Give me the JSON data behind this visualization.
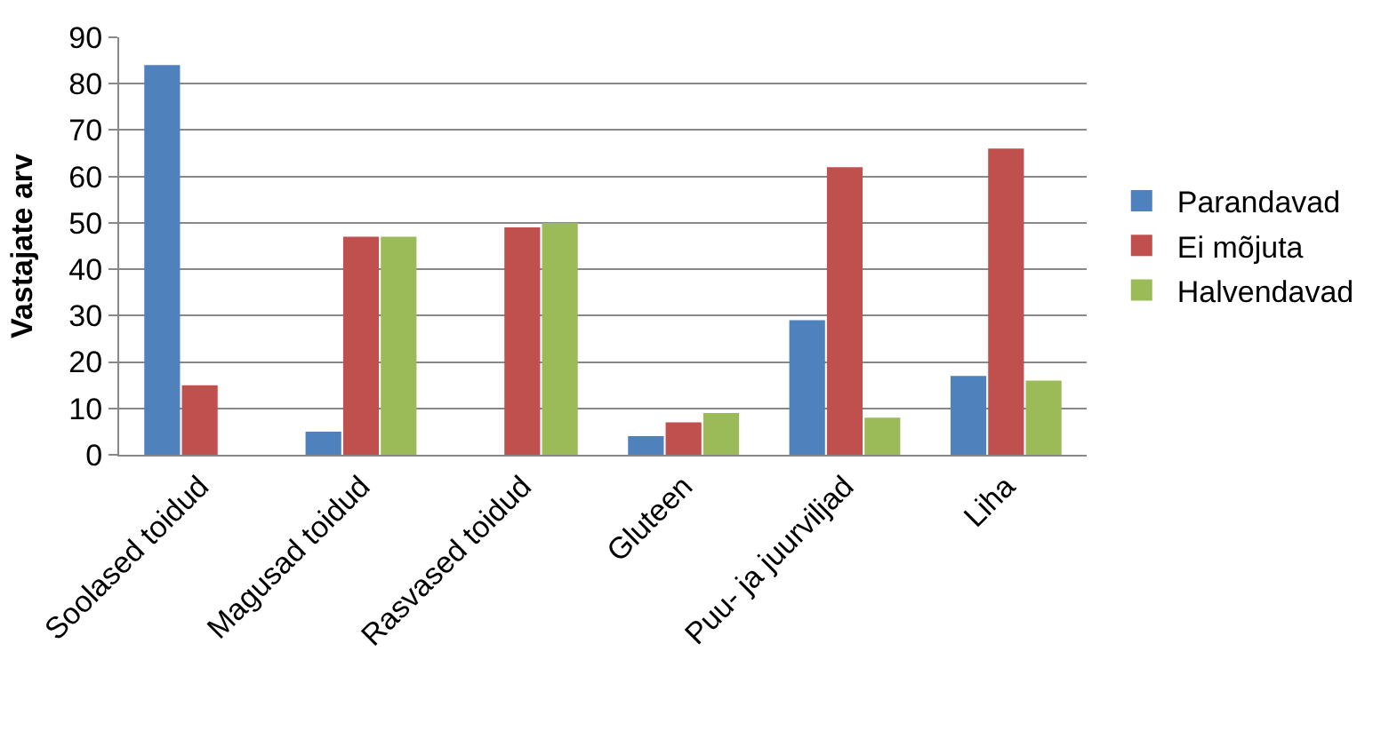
{
  "chart_data": {
    "type": "bar",
    "ylabel": "Vastajate arv",
    "categories": [
      "Soolased toidud",
      "Magusad toidud",
      "Rasvased toidud",
      "Gluteen",
      "Puu- ja juurviljad",
      "Liha"
    ],
    "series": [
      {
        "name": "Parandavad",
        "color": "#4f81bd",
        "values": [
          84,
          5,
          0,
          4,
          29,
          17
        ]
      },
      {
        "name": "Ei mõjuta",
        "color": "#c0504d",
        "values": [
          15,
          47,
          49,
          7,
          62,
          66
        ]
      },
      {
        "name": "Halvendavad",
        "color": "#9bbb59",
        "values": [
          0,
          47,
          50,
          9,
          8,
          16
        ]
      }
    ],
    "ylim": [
      0,
      90
    ],
    "yticks": [
      0,
      10,
      20,
      30,
      40,
      50,
      60,
      70,
      80,
      90
    ],
    "grid": "y",
    "legend": "right"
  }
}
